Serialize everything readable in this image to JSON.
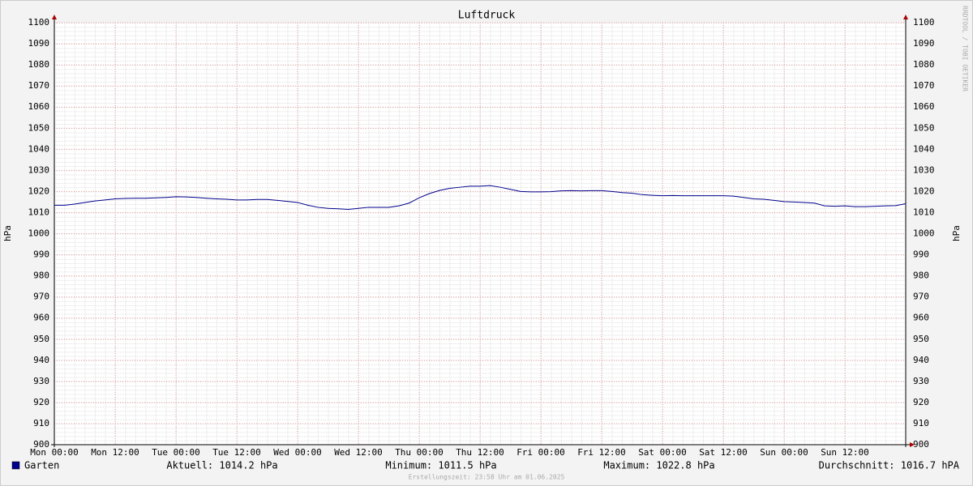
{
  "chart_data": {
    "type": "line",
    "title": "Luftdruck",
    "ylabel": "hPa",
    "watermark": "RRDTOOL / TOBI OETIKER",
    "categories": [
      "Mon 00:00",
      null,
      null,
      null,
      null,
      null,
      "Mon 12:00",
      null,
      null,
      null,
      null,
      null,
      "Tue 00:00",
      null,
      null,
      null,
      null,
      null,
      "Tue 12:00",
      null,
      null,
      null,
      null,
      null,
      "Wed 00:00",
      null,
      null,
      null,
      null,
      null,
      "Wed 12:00",
      null,
      null,
      null,
      null,
      null,
      "Thu 00:00",
      null,
      null,
      null,
      null,
      null,
      "Thu 12:00",
      null,
      null,
      null,
      null,
      null,
      "Fri 00:00",
      null,
      null,
      null,
      null,
      null,
      "Fri 12:00",
      null,
      null,
      null,
      null,
      null,
      "Sat 00:00",
      null,
      null,
      null,
      null,
      null,
      "Sat 12:00",
      null,
      null,
      null,
      null,
      null,
      "Sun 00:00",
      null,
      null,
      null,
      null,
      null,
      "Sun 12:00",
      null,
      null,
      null,
      null,
      null,
      null
    ],
    "series": [
      {
        "name": "Garten",
        "color": "#00008b",
        "values": [
          1013.5,
          1013.5,
          1014,
          1014.8,
          1015.5,
          1016,
          1016.5,
          1016.7,
          1016.8,
          1016.8,
          1017,
          1017.2,
          1017.5,
          1017.4,
          1017.2,
          1016.8,
          1016.5,
          1016.3,
          1016,
          1016,
          1016.2,
          1016.2,
          1015.8,
          1015.3,
          1014.8,
          1013.5,
          1012.5,
          1012,
          1011.8,
          1011.5,
          1012,
          1012.5,
          1012.5,
          1012.5,
          1013.2,
          1014.5,
          1017,
          1019,
          1020.5,
          1021.5,
          1022,
          1022.5,
          1022.5,
          1022.8,
          1022,
          1021,
          1020,
          1019.8,
          1019.8,
          1019.9,
          1020.3,
          1020.4,
          1020.3,
          1020.4,
          1020.4,
          1020,
          1019.5,
          1019.2,
          1018.5,
          1018.2,
          1018,
          1018.1,
          1018,
          1018,
          1018,
          1018,
          1018,
          1017.8,
          1017.2,
          1016.5,
          1016.3,
          1015.8,
          1015.2,
          1015,
          1014.8,
          1014.5,
          1013.2,
          1013,
          1013.2,
          1012.8,
          1012.8,
          1013,
          1013.2,
          1013.3,
          1014.2
        ]
      }
    ],
    "ylim": [
      900,
      1100
    ],
    "yticks": [
      900,
      910,
      920,
      930,
      940,
      950,
      960,
      970,
      980,
      990,
      1000,
      1010,
      1020,
      1030,
      1040,
      1050,
      1060,
      1070,
      1080,
      1090,
      1100
    ],
    "grid": true,
    "grid_color": "#e8a0a0",
    "legend_stats": [
      "Aktuell: 1014.2 hPa",
      "Minimum: 1011.5 hPa",
      "Maximum: 1022.8 hPa",
      "Durchschnitt: 1016.7 hPA"
    ],
    "footer": "Erstellungszeit: 23:58 Uhr am 01.06.2025"
  }
}
